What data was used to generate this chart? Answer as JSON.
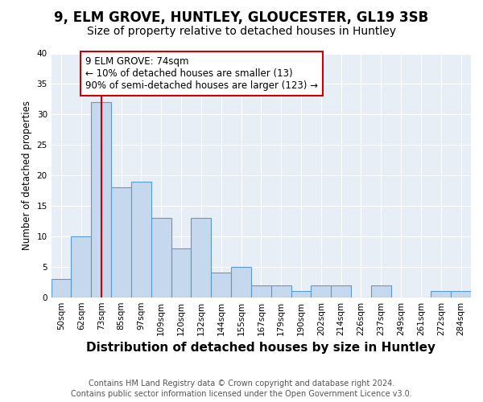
{
  "title1": "9, ELM GROVE, HUNTLEY, GLOUCESTER, GL19 3SB",
  "title2": "Size of property relative to detached houses in Huntley",
  "xlabel": "Distribution of detached houses by size in Huntley",
  "ylabel": "Number of detached properties",
  "categories": [
    "50sqm",
    "62sqm",
    "73sqm",
    "85sqm",
    "97sqm",
    "109sqm",
    "120sqm",
    "132sqm",
    "144sqm",
    "155sqm",
    "167sqm",
    "179sqm",
    "190sqm",
    "202sqm",
    "214sqm",
    "226sqm",
    "237sqm",
    "249sqm",
    "261sqm",
    "272sqm",
    "284sqm"
  ],
  "values": [
    3,
    10,
    32,
    18,
    19,
    13,
    8,
    13,
    4,
    5,
    2,
    2,
    1,
    2,
    2,
    0,
    2,
    0,
    0,
    1,
    1
  ],
  "highlight_index": 2,
  "bar_color": "#c5d8ed",
  "bar_edge_color": "#5b9bd5",
  "highlight_line_color": "#cc0000",
  "ylim": [
    0,
    40
  ],
  "yticks": [
    0,
    5,
    10,
    15,
    20,
    25,
    30,
    35,
    40
  ],
  "annotation_line1": "9 ELM GROVE: 74sqm",
  "annotation_line2": "← 10% of detached houses are smaller (13)",
  "annotation_line3": "90% of semi-detached houses are larger (123) →",
  "annotation_box_color": "#ffffff",
  "annotation_box_edge": "#cc0000",
  "footer1": "Contains HM Land Registry data © Crown copyright and database right 2024.",
  "footer2": "Contains public sector information licensed under the Open Government Licence v3.0.",
  "bg_color": "#ffffff",
  "plot_bg_color": "#e8eef5",
  "grid_color": "#ffffff",
  "title1_fontsize": 12,
  "title2_fontsize": 10,
  "xlabel_fontsize": 11,
  "ylabel_fontsize": 8.5,
  "tick_fontsize": 7.5,
  "footer_fontsize": 7,
  "annotation_fontsize": 8.5
}
